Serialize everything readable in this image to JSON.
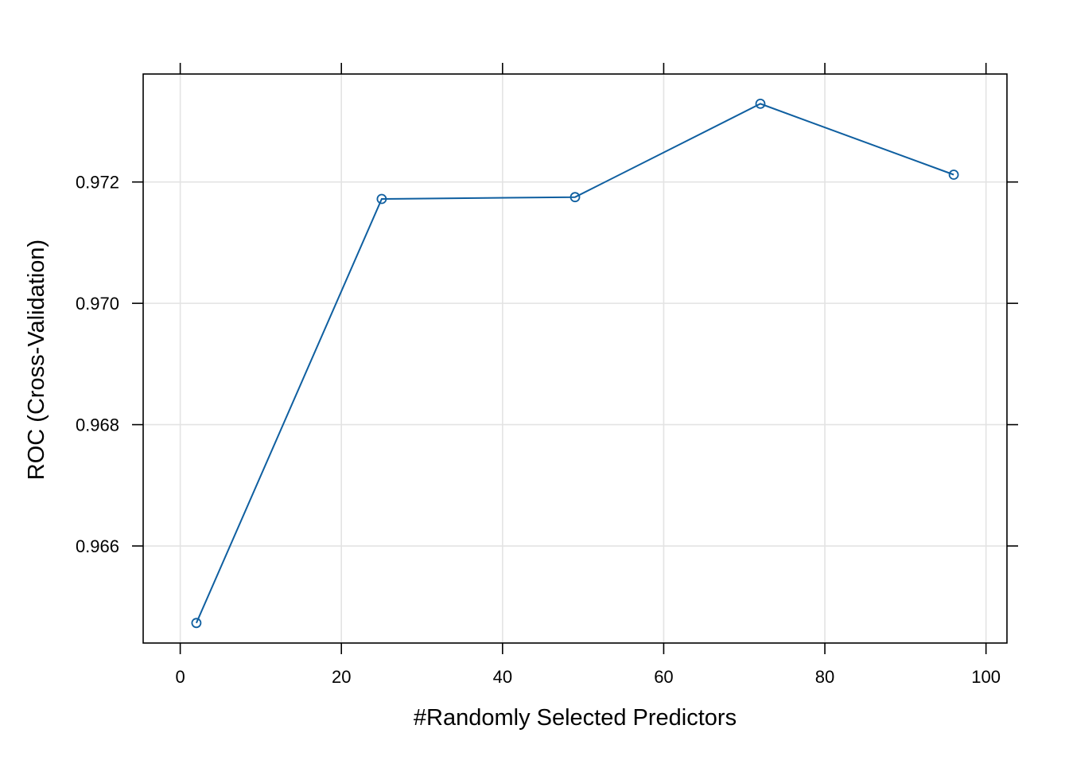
{
  "chart_data": {
    "type": "line",
    "title": "",
    "xlabel": "#Randomly Selected Predictors",
    "ylabel": "ROC (Cross-Validation)",
    "xlim": [
      -4.6,
      102.6
    ],
    "ylim": [
      0.9644,
      0.97378
    ],
    "xticks": [
      0,
      20,
      40,
      60,
      80,
      100
    ],
    "yticks": [
      0.966,
      0.968,
      0.97,
      0.972
    ],
    "ytick_labels": [
      "0.966",
      "0.968",
      "0.970",
      "0.972"
    ],
    "grid": true,
    "legend": "none",
    "series": [
      {
        "x": [
          2,
          25,
          49,
          72,
          96
        ],
        "values": [
          0.96473,
          0.97172,
          0.97175,
          0.97329,
          0.97212
        ],
        "color": "#0f5fa0",
        "marker": "open-circle"
      }
    ]
  },
  "colors": {
    "series": "#0f5fa0",
    "grid": "#e3e3e3",
    "frame": "#000000"
  }
}
